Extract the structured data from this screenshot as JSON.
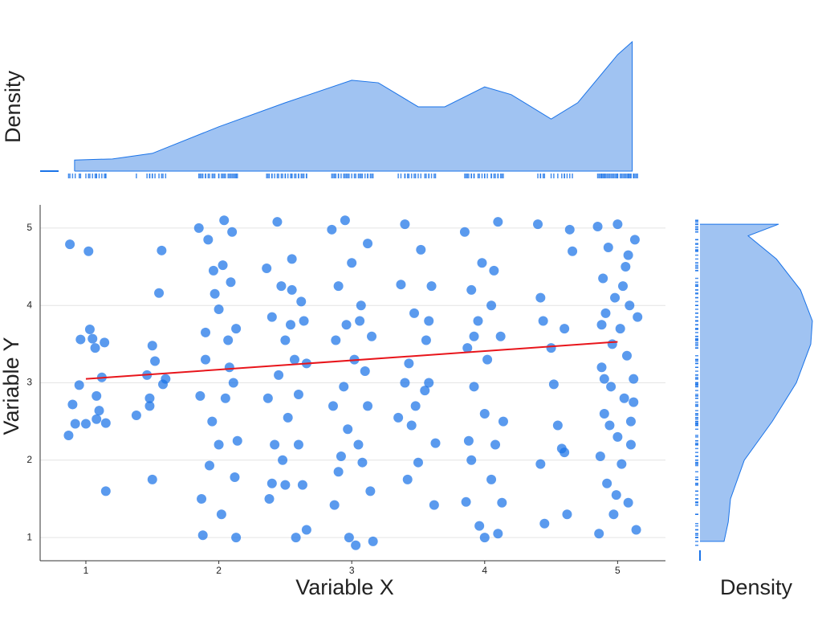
{
  "chart_data": [
    {
      "type": "scatter",
      "xlabel": "Variable X",
      "ylabel": "Variable Y",
      "xlim": [
        0.656,
        5.36
      ],
      "ylim": [
        0.7,
        5.3
      ],
      "xticks": [
        1,
        2,
        3,
        4,
        5
      ],
      "yticks": [
        1,
        2,
        3,
        4,
        5
      ],
      "grid": true,
      "series": [
        {
          "color": "#1a73e8",
          "x": [
            0.87,
            0.88,
            0.9,
            0.92,
            0.95,
            1.0,
            1.02,
            1.03,
            1.05,
            1.07,
            1.08,
            1.1,
            1.12,
            1.14,
            1.15,
            1.15,
            1.08,
            0.96,
            1.38,
            1.46,
            1.48,
            1.5,
            1.5,
            1.52,
            1.55,
            1.57,
            1.6,
            1.58,
            1.48,
            1.85,
            1.87,
            1.88,
            1.9,
            1.92,
            1.95,
            1.97,
            2.0,
            2.02,
            2.05,
            2.08,
            2.1,
            2.12,
            2.13,
            2.14,
            1.93,
            2.0,
            2.07,
            1.9,
            2.13,
            2.03,
            1.96,
            2.09,
            1.86,
            2.04,
            2.11,
            2.36,
            2.37,
            2.38,
            2.4,
            2.42,
            2.44,
            2.45,
            2.47,
            2.5,
            2.5,
            2.52,
            2.55,
            2.57,
            2.58,
            2.6,
            2.62,
            2.63,
            2.64,
            2.48,
            2.55,
            2.6,
            2.66,
            2.66,
            2.4,
            2.54,
            2.85,
            2.86,
            2.87,
            2.88,
            2.9,
            2.9,
            2.92,
            2.95,
            2.96,
            2.97,
            2.98,
            3.0,
            3.02,
            3.03,
            3.05,
            3.07,
            3.08,
            3.1,
            3.12,
            3.12,
            3.14,
            3.15,
            3.16,
            2.94,
            3.06,
            3.35,
            3.37,
            3.4,
            3.42,
            3.43,
            3.45,
            3.47,
            3.5,
            3.52,
            3.55,
            3.56,
            3.58,
            3.6,
            3.62,
            3.63,
            3.58,
            3.4,
            3.48,
            3.85,
            3.86,
            3.87,
            3.88,
            3.9,
            3.92,
            3.95,
            3.96,
            3.98,
            4.0,
            4.02,
            4.05,
            4.07,
            4.08,
            4.1,
            4.12,
            4.13,
            4.14,
            4.0,
            3.92,
            4.05,
            4.1,
            3.9,
            4.4,
            4.42,
            4.44,
            4.45,
            4.5,
            4.52,
            4.55,
            4.58,
            4.6,
            4.62,
            4.64,
            4.6,
            4.42,
            4.66,
            4.85,
            4.86,
            4.87,
            4.88,
            4.89,
            4.9,
            4.91,
            4.92,
            4.93,
            4.95,
            4.96,
            4.97,
            4.98,
            5.0,
            5.0,
            5.02,
            5.03,
            5.05,
            5.06,
            5.07,
            5.08,
            5.09,
            5.1,
            5.12,
            5.13,
            5.14,
            5.15,
            5.1,
            4.94,
            5.04,
            4.88,
            5.12,
            4.99,
            5.08,
            4.9
          ],
          "values": [
            2.32,
            4.79,
            2.72,
            2.47,
            2.97,
            2.47,
            4.7,
            3.69,
            3.57,
            3.45,
            2.53,
            2.64,
            3.07,
            3.52,
            2.48,
            1.6,
            2.83,
            3.56,
            2.58,
            3.1,
            2.7,
            1.75,
            3.48,
            3.28,
            4.16,
            4.71,
            3.05,
            2.98,
            2.8,
            5.0,
            1.5,
            1.03,
            3.3,
            4.85,
            2.5,
            4.15,
            3.95,
            1.3,
            2.8,
            3.2,
            4.95,
            1.78,
            3.7,
            2.25,
            1.93,
            2.2,
            3.55,
            3.65,
            1.0,
            4.52,
            4.45,
            4.3,
            2.83,
            5.1,
            3.0,
            4.48,
            2.8,
            1.5,
            3.85,
            2.2,
            5.08,
            3.1,
            4.25,
            1.68,
            3.55,
            2.55,
            4.6,
            3.3,
            1.0,
            2.85,
            4.05,
            1.68,
            3.8,
            2.0,
            4.2,
            2.2,
            1.1,
            3.25,
            1.7,
            3.75,
            4.98,
            2.7,
            1.42,
            3.55,
            4.25,
            1.85,
            2.05,
            5.1,
            3.75,
            2.4,
            1.0,
            4.55,
            3.3,
            0.9,
            2.2,
            4.0,
            1.97,
            3.15,
            4.8,
            2.7,
            1.6,
            3.6,
            0.95,
            2.95,
            3.8,
            2.55,
            4.27,
            5.05,
            1.75,
            3.25,
            2.45,
            3.9,
            1.97,
            4.72,
            2.9,
            3.55,
            3.0,
            4.25,
            1.42,
            2.22,
            3.8,
            3.0,
            2.7,
            4.95,
            1.46,
            3.45,
            2.25,
            4.2,
            2.95,
            3.8,
            1.15,
            4.55,
            2.6,
            3.3,
            1.75,
            4.45,
            2.2,
            5.08,
            3.6,
            1.45,
            2.5,
            1.0,
            3.6,
            4.0,
            1.05,
            2.0,
            5.05,
            1.95,
            3.8,
            1.18,
            3.45,
            2.98,
            2.45,
            2.15,
            3.7,
            1.3,
            4.98,
            2.1,
            4.1,
            4.7,
            5.02,
            1.05,
            2.05,
            3.2,
            4.35,
            2.6,
            3.9,
            1.7,
            4.75,
            2.95,
            3.5,
            1.3,
            4.1,
            2.3,
            5.05,
            3.7,
            1.95,
            2.8,
            4.5,
            3.35,
            1.45,
            4.0,
            2.5,
            3.05,
            4.85,
            1.1,
            3.85,
            2.2,
            2.45,
            4.25,
            3.75,
            2.75,
            1.55,
            4.65,
            3.05
          ]
        }
      ],
      "trend": {
        "color": "#e8151b",
        "x": [
          1,
          5
        ],
        "values": [
          3.05,
          3.53
        ]
      }
    },
    {
      "type": "area",
      "ylabel": "Density",
      "color": "#a0c3f2",
      "line_color": "#1a73e8",
      "xlim": [
        0.656,
        5.36
      ],
      "ylim": [
        0,
        0.35
      ],
      "x": [
        0.915,
        1.2,
        1.5,
        2.0,
        2.5,
        3.0,
        3.2,
        3.5,
        3.7,
        4.0,
        4.2,
        4.5,
        4.7,
        5.0,
        5.11
      ],
      "values": [
        0.03,
        0.033,
        0.048,
        0.12,
        0.185,
        0.246,
        0.239,
        0.174,
        0.174,
        0.228,
        0.207,
        0.141,
        0.185,
        0.315,
        0.35
      ]
    },
    {
      "type": "area",
      "orientation": "horizontal",
      "xlabel": "Density",
      "color": "#a0c3f2",
      "line_color": "#1a73e8",
      "ylim": [
        0.7,
        5.3
      ],
      "xlim": [
        0,
        0.35
      ],
      "y": [
        0.95,
        1.2,
        1.5,
        2.0,
        2.5,
        3.0,
        3.5,
        3.8,
        4.2,
        4.6,
        4.9,
        5.05
      ],
      "values": [
        0.075,
        0.088,
        0.095,
        0.138,
        0.225,
        0.3,
        0.345,
        0.35,
        0.313,
        0.238,
        0.15,
        0.245
      ]
    }
  ]
}
